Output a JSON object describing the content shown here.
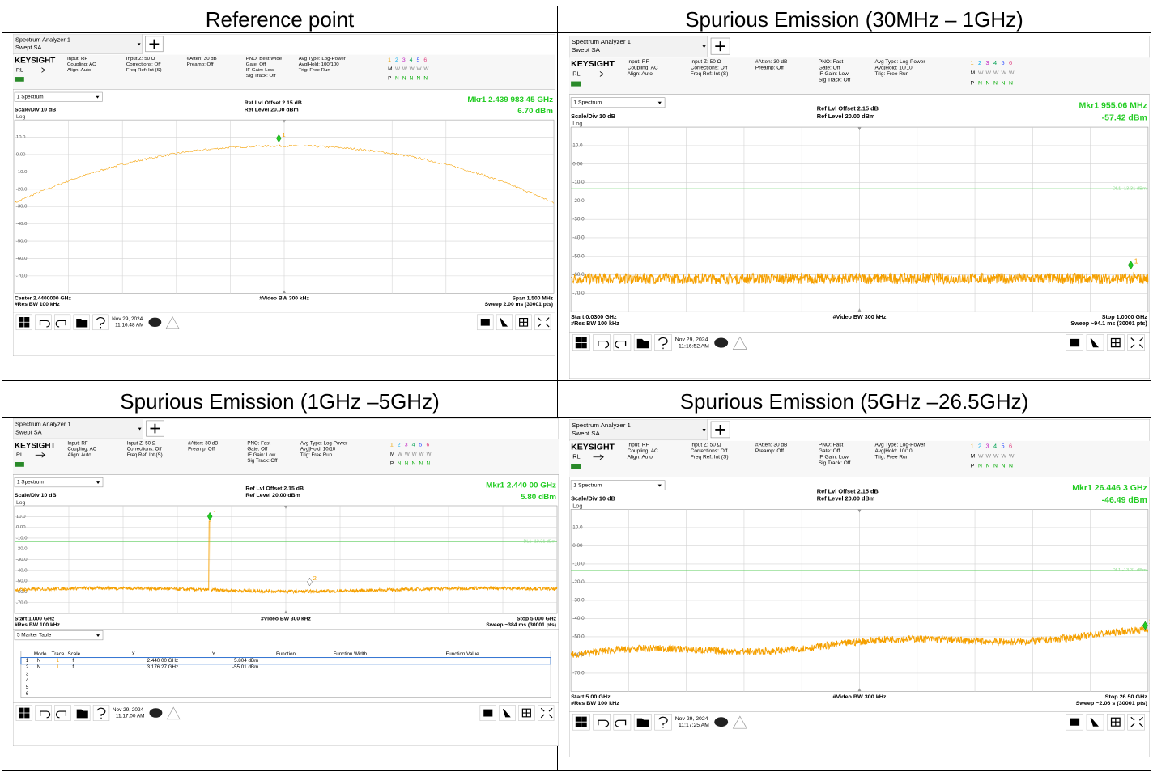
{
  "panels": [
    {
      "title": "Reference point",
      "screen": {
        "app": "Spectrum Analyzer 1",
        "mode": "Swept SA",
        "brand": "KEYSIGHT",
        "rl": "RL",
        "settings": [
          [
            "Input: RF",
            "Coupling: AC",
            "Align: Auto"
          ],
          [
            "Input Z: 50 Ω",
            "Corrections: Off",
            "Freq Ref: Int (S)"
          ],
          [
            "#Atten: 30 dB",
            "Preamp: Off"
          ],
          [
            "PNO: Best Wide",
            "Gate: Off",
            "IF Gain: Low",
            "Sig Track: Off"
          ],
          [
            "Avg Type: Log-Power",
            "Avg|Hold: 100/100",
            "Trig: Free Run"
          ]
        ],
        "traces": [
          "1",
          "2",
          "3",
          "4",
          "5",
          "6"
        ],
        "trace_types": [
          "M",
          "W",
          "W",
          "W",
          "W",
          "W"
        ],
        "detectors": [
          "P",
          "N",
          "N",
          "N",
          "N",
          "N"
        ],
        "window": "1 Spectrum",
        "ref_offset": "Ref Lvl Offset 2.15 dB",
        "ref_level": "Ref Level 20.00 dBm",
        "scale": "Scale/Div 10 dB",
        "log": "Log",
        "marker": "Mkr1  2.439 983 45 GHz",
        "marker_value": "6.70 dBm",
        "marker_ids": [
          "1"
        ],
        "ylabels": [
          "10.0",
          "0.00",
          "-10.0",
          "-20.0",
          "-30.0",
          "-40.0",
          "-50.0",
          "-60.0",
          "-70.0"
        ],
        "bottom_left": [
          "Center 2.4400000 GHz",
          "#Res BW 100 kHz"
        ],
        "bottom_center": "#Video BW 300 kHz",
        "bottom_right": [
          "Span 1.500 MHz",
          "Sweep 2.00 ms (30001 pts)"
        ],
        "date": "Nov 29, 2024",
        "time": "11:16:48 AM"
      }
    },
    {
      "title": "Spurious Emission (30MHz – 1GHz)",
      "screen": {
        "app": "Spectrum Analyzer 1",
        "mode": "Swept SA",
        "brand": "KEYSIGHT",
        "rl": "RL",
        "settings": [
          [
            "Input: RF",
            "Coupling: AC",
            "Align: Auto"
          ],
          [
            "Input Z: 50 Ω",
            "Corrections: Off",
            "Freq Ref: Int (S)"
          ],
          [
            "#Atten: 30 dB",
            "Preamp: Off"
          ],
          [
            "PNO: Fast",
            "Gate: Off",
            "IF Gain: Low",
            "Sig Track: Off"
          ],
          [
            "Avg Type: Log-Power",
            "Avg|Hold: 10/10",
            "Trig: Free Run"
          ]
        ],
        "traces": [
          "1",
          "2",
          "3",
          "4",
          "5",
          "6"
        ],
        "trace_types": [
          "M",
          "W",
          "W",
          "W",
          "W",
          "W"
        ],
        "detectors": [
          "P",
          "N",
          "N",
          "N",
          "N",
          "N"
        ],
        "window": "1 Spectrum",
        "ref_offset": "Ref Lvl Offset 2.15 dB",
        "ref_level": "Ref Level 20.00 dBm",
        "scale": "Scale/Div 10 dB",
        "log": "Log",
        "marker": "Mkr1  955.06 MHz",
        "marker_value": "-57.42 dBm",
        "marker_ids": [
          "1"
        ],
        "display_line": {
          "label": "DL1 -13.31 dBm",
          "value": -13.31
        },
        "ylabels": [
          "10.0",
          "0.00",
          "-10.0",
          "-20.0",
          "-30.0",
          "-40.0",
          "-50.0",
          "-60.0",
          "-70.0"
        ],
        "bottom_left": [
          "Start 0.0300 GHz",
          "#Res BW 100 kHz"
        ],
        "bottom_center": "#Video BW 300 kHz",
        "bottom_right": [
          "Stop 1.0000 GHz",
          "Sweep ~94.1 ms (30001 pts)"
        ],
        "date": "Nov 29, 2024",
        "time": "11:16:52 AM"
      }
    },
    {
      "title": "Spurious Emission (1GHz –5GHz)",
      "screen": {
        "app": "Spectrum Analyzer 1",
        "mode": "Swept SA",
        "brand": "KEYSIGHT",
        "rl": "RL",
        "settings": [
          [
            "Input: RF",
            "Coupling: AC",
            "Align: Auto"
          ],
          [
            "Input Z: 50 Ω",
            "Corrections: Off",
            "Freq Ref: Int (S)"
          ],
          [
            "#Atten: 30 dB",
            "Preamp: Off"
          ],
          [
            "PNO: Fast",
            "Gate: Off",
            "IF Gain: Low",
            "Sig Track: Off"
          ],
          [
            "Avg Type: Log-Power",
            "Avg|Hold: 10/10",
            "Trig: Free Run"
          ]
        ],
        "traces": [
          "1",
          "2",
          "3",
          "4",
          "5",
          "6"
        ],
        "trace_types": [
          "M",
          "W",
          "W",
          "W",
          "W",
          "W"
        ],
        "detectors": [
          "P",
          "N",
          "N",
          "N",
          "N",
          "N"
        ],
        "window": "1 Spectrum",
        "ref_offset": "Ref Lvl Offset 2.15 dB",
        "ref_level": "Ref Level 20.00 dBm",
        "scale": "Scale/Div 10 dB",
        "log": "Log",
        "marker": "Mkr1  2.440 00 GHz",
        "marker_value": "5.80 dBm",
        "marker_ids": [
          "1",
          "2"
        ],
        "display_line": {
          "label": "DL1 -13.31 dBm",
          "value": -13.31
        },
        "ylabels": [
          "10.0",
          "0.00",
          "-10.0",
          "-20.0",
          "-30.0",
          "-40.0",
          "-50.0",
          "-60.0",
          "-70.0"
        ],
        "bottom_left": [
          "Start 1.000 GHz",
          "#Res BW 100 kHz"
        ],
        "bottom_center": "#Video BW 300 kHz",
        "bottom_right": [
          "Stop 5.000 GHz",
          "Sweep ~384 ms (30001 pts)"
        ],
        "table": {
          "title": "5 Marker Table",
          "headers": [
            "Mode",
            "Trace",
            "Scale",
            "X",
            "Y",
            "Function",
            "Function Width",
            "Function Value"
          ],
          "rows": [
            [
              "1",
              "N",
              "1",
              "f",
              "2.440 00 GHz",
              "5.804 dBm"
            ],
            [
              "2",
              "N",
              "1",
              "f",
              "3.176 27 GHz",
              "-55.01 dBm"
            ],
            [
              "3"
            ],
            [
              "4"
            ],
            [
              "5"
            ],
            [
              "6"
            ]
          ]
        },
        "date": "Nov 29, 2024",
        "time": "11:17:00 AM"
      }
    },
    {
      "title": "Spurious Emission (5GHz –26.5GHz)",
      "screen": {
        "app": "Spectrum Analyzer 1",
        "mode": "Swept SA",
        "brand": "KEYSIGHT",
        "rl": "RL",
        "settings": [
          [
            "Input: RF",
            "Coupling: AC",
            "Align: Auto"
          ],
          [
            "Input Z: 50 Ω",
            "Corrections: Off",
            "Freq Ref: Int (S)"
          ],
          [
            "#Atten: 30 dB",
            "Preamp: Off"
          ],
          [
            "PNO: Fast",
            "Gate: Off",
            "IF Gain: Low",
            "Sig Track: Off"
          ],
          [
            "Avg Type: Log-Power",
            "Avg|Hold: 10/10",
            "Trig: Free Run"
          ]
        ],
        "traces": [
          "1",
          "2",
          "3",
          "4",
          "5",
          "6"
        ],
        "trace_types": [
          "M",
          "W",
          "W",
          "W",
          "W",
          "W"
        ],
        "detectors": [
          "P",
          "N",
          "N",
          "N",
          "N",
          "N"
        ],
        "window": "1 Spectrum",
        "ref_offset": "Ref Lvl Offset 2.15 dB",
        "ref_level": "Ref Level 20.00 dBm",
        "scale": "Scale/Div 10 dB",
        "log": "Log",
        "marker": "Mkr1  26.446 3 GHz",
        "marker_value": "-46.49 dBm",
        "marker_ids": [
          "1"
        ],
        "display_line": {
          "label": "DL1 -13.31 dBm",
          "value": -13.31
        },
        "ylabels": [
          "10.0",
          "0.00",
          "-10.0",
          "-20.0",
          "-30.0",
          "-40.0",
          "-50.0",
          "-60.0",
          "-70.0"
        ],
        "bottom_left": [
          "Start 5.00 GHz",
          "#Res BW 100 kHz"
        ],
        "bottom_center": "#Video BW 300 kHz",
        "bottom_right": [
          "Stop 26.50 GHz",
          "Sweep ~2.06 s (30001 pts)"
        ],
        "date": "Nov 29, 2024",
        "time": "11:17:25 AM"
      }
    }
  ]
}
